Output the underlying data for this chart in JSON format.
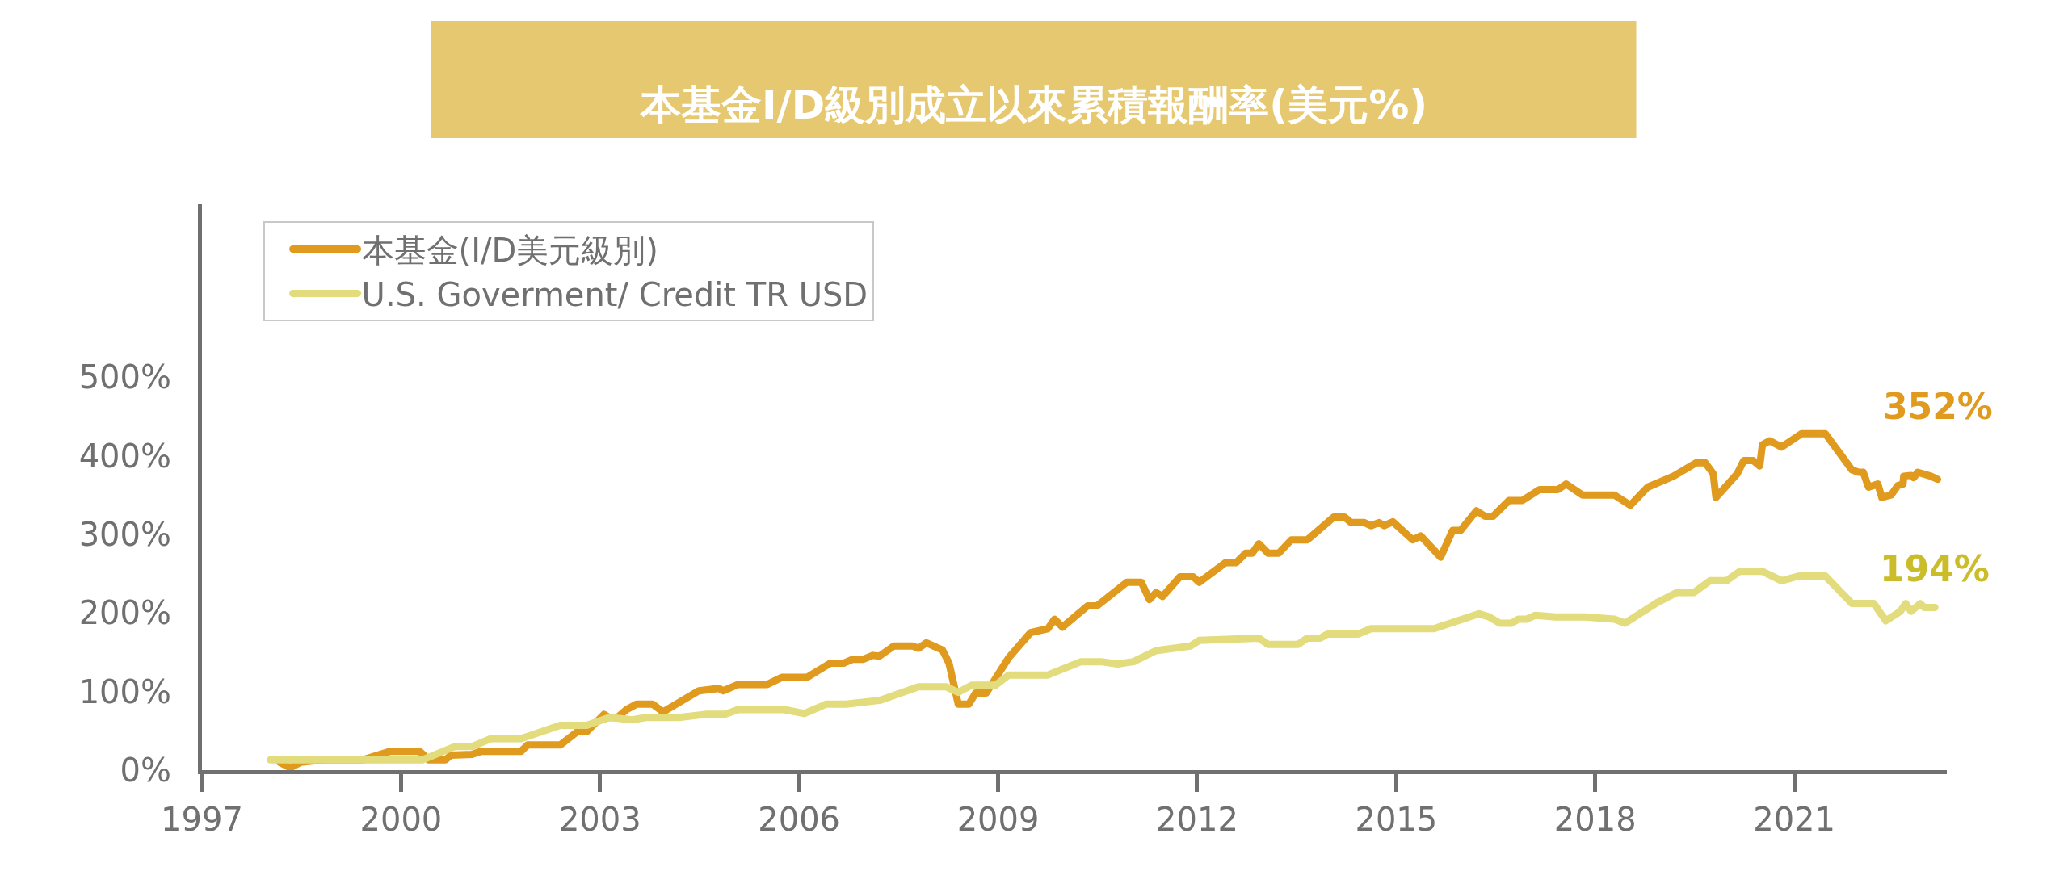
{
  "chart_data": {
    "type": "line",
    "title": "本基金I/D級別成立以來累積報酬率(美元%)",
    "xlim": [
      1997,
      2023.3
    ],
    "xticks": [
      1997,
      2000,
      2003,
      2006,
      2009,
      2012,
      2015,
      2018,
      2021
    ],
    "ylim": [
      0,
      720
    ],
    "yticks": [
      {
        "value": 0,
        "label": "0%"
      },
      {
        "value": 100,
        "label": "100%"
      },
      {
        "value": 200,
        "label": "200%"
      },
      {
        "value": 300,
        "label": "300%"
      },
      {
        "value": 400,
        "label": "400%"
      },
      {
        "value": 500,
        "label": "500%"
      }
    ],
    "grid": false,
    "legend": "top left",
    "marker": "none",
    "line_style": "solid",
    "series": [
      {
        "name": "本基金(I/D美元級別)",
        "color": "#e09a1e",
        "x": [
          1998.17,
          1998.33,
          1998.49,
          1998.83,
          1999.42,
          1999.84,
          2000.28,
          2000.42,
          2000.67,
          2000.75,
          2001.07,
          2001.21,
          2001.81,
          2001.91,
          2002.4,
          2002.66,
          2002.8,
          2003.06,
          2003.14,
          2003.26,
          2003.4,
          2003.55,
          2003.79,
          2003.95,
          2004.49,
          2004.79,
          2004.86,
          2005.08,
          2005.52,
          2005.74,
          2006.12,
          2006.47,
          2006.67,
          2006.81,
          2006.97,
          2007.11,
          2007.21,
          2007.43,
          2007.71,
          2007.8,
          2007.92,
          2008.16,
          2008.26,
          2008.4,
          2008.56,
          2008.66,
          2008.82,
          2009.16,
          2009.49,
          2009.75,
          2009.85,
          2009.97,
          2010.35,
          2010.49,
          2010.94,
          2011.16,
          2011.28,
          2011.38,
          2011.48,
          2011.74,
          2011.94,
          2012.03,
          2012.43,
          2012.59,
          2012.73,
          2012.83,
          2012.93,
          2013.07,
          2013.23,
          2013.42,
          2013.66,
          2014.06,
          2014.22,
          2014.32,
          2014.52,
          2014.62,
          2014.74,
          2014.82,
          2014.95,
          2015.25,
          2015.37,
          2015.67,
          2015.85,
          2015.97,
          2016.21,
          2016.34,
          2016.46,
          2016.7,
          2016.9,
          2017.16,
          2017.44,
          2017.56,
          2017.81,
          2018.29,
          2018.53,
          2018.79,
          2019.18,
          2019.52,
          2019.66,
          2019.78,
          2019.82,
          2020.14,
          2020.24,
          2020.38,
          2020.48,
          2020.52,
          2020.63,
          2020.81,
          2021.11,
          2021.47,
          2021.87,
          2021.97,
          2022.04,
          2022.12,
          2022.26,
          2022.32,
          2022.46,
          2022.56,
          2022.64,
          2022.65,
          2022.76,
          2022.8,
          2022.86,
          2023.06,
          2023.16
        ],
        "values": [
          10,
          3,
          10,
          13,
          13,
          24,
          24,
          13,
          13,
          19,
          20,
          24,
          24,
          32,
          32,
          49,
          49,
          71,
          67,
          67,
          77,
          84,
          84,
          74,
          101,
          104,
          101,
          109,
          109,
          118,
          118,
          136,
          136,
          141,
          141,
          146,
          145,
          158,
          158,
          155,
          162,
          153,
          136,
          84,
          84,
          98,
          98,
          143,
          175,
          180,
          192,
          182,
          209,
          209,
          239,
          239,
          217,
          226,
          221,
          246,
          246,
          239,
          264,
          264,
          276,
          276,
          288,
          276,
          276,
          293,
          293,
          322,
          322,
          315,
          315,
          311,
          315,
          311,
          316,
          293,
          298,
          271,
          305,
          305,
          330,
          323,
          323,
          343,
          343,
          357,
          357,
          364,
          350,
          350,
          337,
          360,
          374,
          391,
          391,
          377,
          347,
          377,
          394,
          394,
          387,
          414,
          419,
          411,
          428,
          428,
          382,
          379,
          379,
          360,
          364,
          347,
          350,
          362,
          364,
          374,
          375,
          372,
          379,
          374,
          370
        ]
      },
      {
        "name": "U.S. Goverment/ Credit TR USD",
        "color": "#e2dc7c",
        "x": [
          1998.03,
          2000.32,
          2000.81,
          2001.07,
          2001.35,
          2001.81,
          2002.4,
          2002.8,
          2003.14,
          2003.49,
          2003.69,
          2004.19,
          2004.59,
          2004.88,
          2005.08,
          2005.78,
          2006.08,
          2006.41,
          2006.71,
          2007.23,
          2007.8,
          2008.22,
          2008.4,
          2008.6,
          2008.96,
          2009.16,
          2009.75,
          2010.25,
          2010.55,
          2010.8,
          2011.04,
          2011.38,
          2011.9,
          2012.03,
          2012.93,
          2013.07,
          2013.52,
          2013.66,
          2013.86,
          2013.96,
          2014.42,
          2014.62,
          2015.57,
          2016.25,
          2016.4,
          2016.56,
          2016.74,
          2016.84,
          2016.96,
          2017.1,
          2017.4,
          2017.85,
          2018.29,
          2018.45,
          2018.69,
          2018.95,
          2019.23,
          2019.49,
          2019.73,
          2019.98,
          2020.18,
          2020.52,
          2020.81,
          2021.07,
          2021.47,
          2021.87,
          2022.2,
          2022.38,
          2022.6,
          2022.68,
          2022.76,
          2022.9,
          2022.96,
          2023.12
        ],
        "values": [
          13,
          13,
          30,
          30,
          40,
          40,
          57,
          57,
          67,
          64,
          67,
          67,
          71,
          71,
          77,
          77,
          72,
          84,
          84,
          89,
          106,
          106,
          99,
          108,
          108,
          121,
          121,
          138,
          138,
          135,
          138,
          152,
          158,
          165,
          168,
          160,
          160,
          168,
          168,
          173,
          173,
          180,
          180,
          199,
          195,
          187,
          187,
          192,
          192,
          197,
          195,
          195,
          192,
          187,
          200,
          214,
          226,
          226,
          241,
          241,
          253,
          253,
          241,
          247,
          247,
          212,
          212,
          190,
          202,
          212,
          202,
          212,
          207,
          207
        ]
      }
    ],
    "annotations": [
      {
        "text": "352%",
        "x": 2023.16,
        "y": 370
      },
      {
        "text": "194%",
        "x": 2023.12,
        "y": 207
      }
    ]
  }
}
